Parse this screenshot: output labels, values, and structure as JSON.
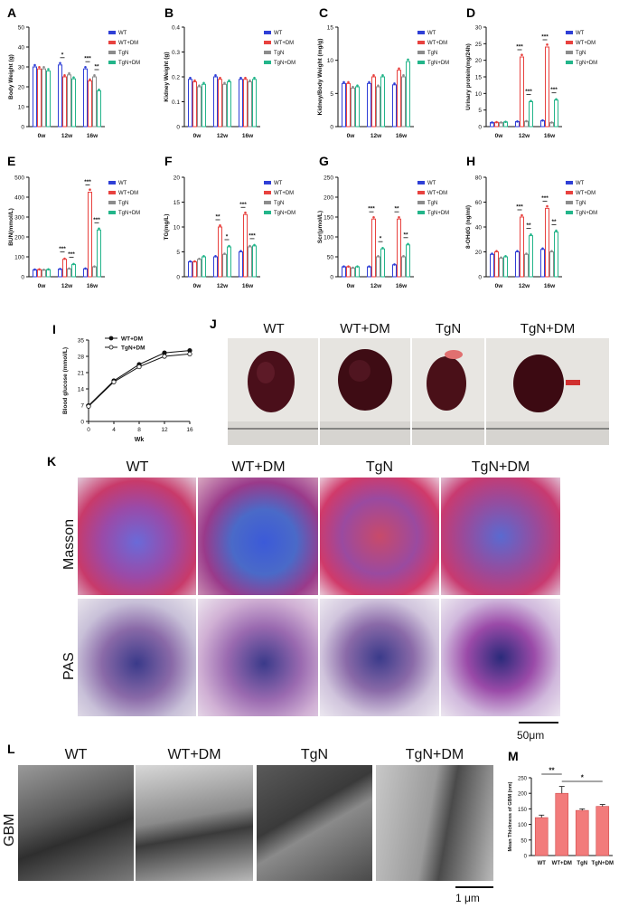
{
  "panels": {
    "A": "A",
    "B": "B",
    "C": "C",
    "D": "D",
    "E": "E",
    "F": "F",
    "G": "G",
    "H": "H",
    "I": "I",
    "J": "J",
    "K": "K",
    "L": "L",
    "M": "M"
  },
  "groups": [
    "WT",
    "WT+DM",
    "TgN",
    "TgN+DM"
  ],
  "colors": {
    "WT": "#2f3fd6",
    "WT+DM": "#e8423f",
    "TgN": "#8c8c8c",
    "TgN+DM": "#23b58a"
  },
  "timepoints": [
    "0w",
    "12w",
    "16w"
  ],
  "photo_labels": {
    "J": [
      "WT",
      "WT+DM",
      "TgN",
      "TgN+DM"
    ],
    "K": [
      "WT",
      "WT+DM",
      "TgN",
      "TgN+DM"
    ],
    "L": [
      "WT",
      "WT+DM",
      "TgN",
      "TgN+DM"
    ]
  },
  "row_labels": {
    "masson": "Masson",
    "pas": "PAS",
    "gbm": "GBM"
  },
  "scale_bars": {
    "K": "50μm",
    "L": "1 μm"
  },
  "chart_data": [
    {
      "id": "A",
      "type": "bar",
      "ylabel": "Body Weight (g)",
      "ylim": [
        0,
        50
      ],
      "yticks": [
        0,
        10,
        20,
        30,
        40,
        50
      ],
      "categories": [
        "0w",
        "12w",
        "16w"
      ],
      "series": [
        {
          "name": "WT",
          "values": [
            30,
            31,
            29
          ]
        },
        {
          "name": "WT+DM",
          "values": [
            29,
            25,
            23
          ]
        },
        {
          "name": "TgN",
          "values": [
            29,
            26,
            25
          ]
        },
        {
          "name": "TgN+DM",
          "values": [
            28,
            24,
            18
          ]
        }
      ],
      "sig": [
        {
          "g": 1,
          "a": 0,
          "b": 1,
          "t": "*"
        },
        {
          "g": 2,
          "a": 0,
          "b": 1,
          "t": "***"
        },
        {
          "g": 2,
          "a": 2,
          "b": 3,
          "t": "**"
        }
      ]
    },
    {
      "id": "B",
      "type": "bar",
      "ylabel": "Kidney Weight (g)",
      "ylim": [
        0,
        0.4
      ],
      "yticks": [
        0.0,
        0.1,
        0.2,
        0.3,
        0.4
      ],
      "categories": [
        "0w",
        "12w",
        "16w"
      ],
      "series": [
        {
          "name": "WT",
          "values": [
            0.19,
            0.2,
            0.19
          ]
        },
        {
          "name": "WT+DM",
          "values": [
            0.18,
            0.19,
            0.19
          ]
        },
        {
          "name": "TgN",
          "values": [
            0.16,
            0.17,
            0.18
          ]
        },
        {
          "name": "TgN+DM",
          "values": [
            0.17,
            0.18,
            0.19
          ]
        }
      ],
      "sig": []
    },
    {
      "id": "C",
      "type": "bar",
      "ylabel": "Kidney/Body Weight (mg/g)",
      "ylim": [
        0,
        15
      ],
      "yticks": [
        0,
        5,
        10,
        15
      ],
      "categories": [
        "0w",
        "12w",
        "16w"
      ],
      "series": [
        {
          "name": "WT",
          "values": [
            6.5,
            6.5,
            6.3
          ]
        },
        {
          "name": "WT+DM",
          "values": [
            6.5,
            7.5,
            8.5
          ]
        },
        {
          "name": "TgN",
          "values": [
            5.8,
            6.0,
            7.5
          ]
        },
        {
          "name": "TgN+DM",
          "values": [
            6.0,
            7.5,
            9.8
          ]
        }
      ],
      "sig": []
    },
    {
      "id": "D",
      "type": "bar",
      "ylabel": "Urinary protein(mg/24h)",
      "ylim": [
        0,
        30
      ],
      "yticks": [
        0,
        5,
        10,
        15,
        20,
        25,
        30
      ],
      "categories": [
        "0w",
        "12w",
        "16w"
      ],
      "series": [
        {
          "name": "WT",
          "values": [
            1.2,
            1.5,
            1.8
          ]
        },
        {
          "name": "WT+DM",
          "values": [
            1.3,
            21,
            24
          ]
        },
        {
          "name": "TgN",
          "values": [
            1.2,
            1.6,
            1.2
          ]
        },
        {
          "name": "TgN+DM",
          "values": [
            1.4,
            7.5,
            8
          ]
        }
      ],
      "sig": [
        {
          "g": 1,
          "a": 0,
          "b": 1,
          "t": "***"
        },
        {
          "g": 1,
          "a": 2,
          "b": 3,
          "t": "***"
        },
        {
          "g": 2,
          "a": 0,
          "b": 1,
          "t": "***"
        },
        {
          "g": 2,
          "a": 2,
          "b": 3,
          "t": "***"
        }
      ]
    },
    {
      "id": "E",
      "type": "bar",
      "ylabel": "BUN(mmol/L)",
      "ylim": [
        0,
        500
      ],
      "yticks": [
        0,
        100,
        200,
        300,
        400,
        500
      ],
      "categories": [
        "0w",
        "12w",
        "16w"
      ],
      "series": [
        {
          "name": "WT",
          "values": [
            35,
            38,
            40
          ]
        },
        {
          "name": "WT+DM",
          "values": [
            36,
            88,
            425
          ]
        },
        {
          "name": "TgN",
          "values": [
            34,
            40,
            50
          ]
        },
        {
          "name": "TgN+DM",
          "values": [
            36,
            62,
            235
          ]
        }
      ],
      "sig": [
        {
          "g": 1,
          "a": 0,
          "b": 1,
          "t": "***"
        },
        {
          "g": 1,
          "a": 2,
          "b": 3,
          "t": "***"
        },
        {
          "g": 2,
          "a": 0,
          "b": 1,
          "t": "***"
        },
        {
          "g": 2,
          "a": 2,
          "b": 3,
          "t": "***"
        }
      ]
    },
    {
      "id": "F",
      "type": "bar",
      "ylabel": "TG(mg/L)",
      "ylim": [
        0,
        20
      ],
      "yticks": [
        0,
        5,
        10,
        15,
        20
      ],
      "categories": [
        "0w",
        "12w",
        "16w"
      ],
      "series": [
        {
          "name": "WT",
          "values": [
            3,
            4,
            5
          ]
        },
        {
          "name": "WT+DM",
          "values": [
            3,
            10,
            12.5
          ]
        },
        {
          "name": "TgN",
          "values": [
            3.5,
            4.5,
            6
          ]
        },
        {
          "name": "TgN+DM",
          "values": [
            4,
            6,
            6.2
          ]
        }
      ],
      "sig": [
        {
          "g": 1,
          "a": 0,
          "b": 1,
          "t": "**"
        },
        {
          "g": 1,
          "a": 2,
          "b": 3,
          "t": "*"
        },
        {
          "g": 2,
          "a": 0,
          "b": 1,
          "t": "***"
        },
        {
          "g": 2,
          "a": 2,
          "b": 3,
          "t": "***"
        }
      ]
    },
    {
      "id": "G",
      "type": "bar",
      "ylabel": "Scr(μmol/L)",
      "ylim": [
        0,
        250
      ],
      "yticks": [
        0,
        50,
        100,
        150,
        200,
        250
      ],
      "categories": [
        "0w",
        "12w",
        "16w"
      ],
      "series": [
        {
          "name": "WT",
          "values": [
            25,
            25,
            30
          ]
        },
        {
          "name": "WT+DM",
          "values": [
            25,
            145,
            145
          ]
        },
        {
          "name": "TgN",
          "values": [
            22,
            50,
            50
          ]
        },
        {
          "name": "TgN+DM",
          "values": [
            25,
            70,
            80
          ]
        }
      ],
      "sig": [
        {
          "g": 1,
          "a": 0,
          "b": 1,
          "t": "***"
        },
        {
          "g": 1,
          "a": 2,
          "b": 3,
          "t": "*"
        },
        {
          "g": 2,
          "a": 0,
          "b": 1,
          "t": "**"
        },
        {
          "g": 2,
          "a": 2,
          "b": 3,
          "t": "**"
        }
      ]
    },
    {
      "id": "H",
      "type": "bar",
      "ylabel": "8-OHdG (ng/ml)",
      "ylim": [
        0,
        80
      ],
      "yticks": [
        0,
        20,
        40,
        60,
        80
      ],
      "categories": [
        "0w",
        "12w",
        "16w"
      ],
      "series": [
        {
          "name": "WT",
          "values": [
            18,
            20,
            22
          ]
        },
        {
          "name": "WT+DM",
          "values": [
            20,
            48,
            55
          ]
        },
        {
          "name": "TgN",
          "values": [
            15,
            18,
            20
          ]
        },
        {
          "name": "TgN+DM",
          "values": [
            16,
            33,
            36
          ]
        }
      ],
      "sig": [
        {
          "g": 1,
          "a": 0,
          "b": 1,
          "t": "***"
        },
        {
          "g": 1,
          "a": 2,
          "b": 3,
          "t": "**"
        },
        {
          "g": 2,
          "a": 0,
          "b": 1,
          "t": "***"
        },
        {
          "g": 2,
          "a": 2,
          "b": 3,
          "t": "**"
        }
      ]
    },
    {
      "id": "I",
      "type": "line",
      "xlabel": "Wk",
      "ylabel": "Blood glucose (mmol/L)",
      "xlim": [
        0,
        16
      ],
      "ylim": [
        0,
        35
      ],
      "xticks": [
        0,
        4,
        8,
        12,
        16
      ],
      "yticks": [
        0,
        7,
        14,
        21,
        28,
        35
      ],
      "x": [
        0,
        4,
        8,
        12,
        16
      ],
      "series": [
        {
          "name": "WT+DM",
          "values": [
            6.8,
            17.5,
            24.5,
            29.5,
            30.5
          ],
          "marker": "filled"
        },
        {
          "name": "TgN+DM",
          "values": [
            6.5,
            17,
            23.5,
            28,
            29
          ],
          "marker": "open"
        }
      ]
    },
    {
      "id": "M",
      "type": "bar",
      "ylabel": "Mean Thickness of GBM (nm)",
      "ylim": [
        0,
        250
      ],
      "yticks": [
        0,
        50,
        100,
        150,
        200,
        250
      ],
      "categories": [
        "WT",
        "WT+DM",
        "TgN",
        "TgN+DM"
      ],
      "values": [
        122,
        200,
        145,
        158
      ],
      "errors": [
        8,
        22,
        5,
        6
      ],
      "sig": [
        {
          "a": 0,
          "b": 1,
          "t": "**"
        },
        {
          "a": 1,
          "b": 3,
          "t": "*"
        }
      ]
    }
  ]
}
